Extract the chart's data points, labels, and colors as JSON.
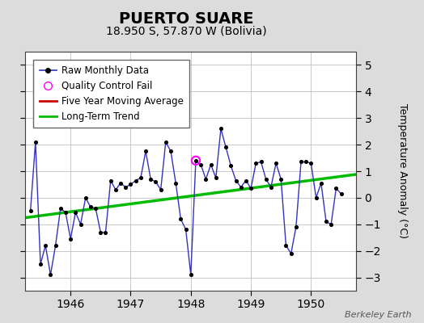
{
  "title": "PUERTO SUARE",
  "subtitle": "18.950 S, 57.870 W (Bolivia)",
  "ylabel": "Temperature Anomaly (°C)",
  "watermark": "Berkeley Earth",
  "xlim": [
    1945.25,
    1950.75
  ],
  "ylim": [
    -3.5,
    5.5
  ],
  "yticks": [
    -3,
    -2,
    -1,
    0,
    1,
    2,
    3,
    4,
    5
  ],
  "bg_color": "#dcdcdc",
  "plot_bg_color": "#ffffff",
  "raw_color": "#3333bb",
  "dot_color": "#000000",
  "trend_color": "#00bb00",
  "mavg_color": "#cc0000",
  "qc_color": "#ff00ff",
  "raw_monthly": [
    [
      1945.333,
      -0.5
    ],
    [
      1945.417,
      2.1
    ],
    [
      1945.5,
      -2.5
    ],
    [
      1945.583,
      -1.8
    ],
    [
      1945.667,
      -2.9
    ],
    [
      1945.75,
      -1.8
    ],
    [
      1945.833,
      -0.4
    ],
    [
      1945.917,
      -0.55
    ],
    [
      1946.0,
      -1.55
    ],
    [
      1946.083,
      -0.55
    ],
    [
      1946.167,
      -1.0
    ],
    [
      1946.25,
      0.0
    ],
    [
      1946.333,
      -0.35
    ],
    [
      1946.417,
      -0.4
    ],
    [
      1946.5,
      -1.3
    ],
    [
      1946.583,
      -1.3
    ],
    [
      1946.667,
      0.65
    ],
    [
      1946.75,
      0.3
    ],
    [
      1946.833,
      0.55
    ],
    [
      1946.917,
      0.4
    ],
    [
      1947.0,
      0.5
    ],
    [
      1947.083,
      0.65
    ],
    [
      1947.167,
      0.75
    ],
    [
      1947.25,
      1.75
    ],
    [
      1947.333,
      0.7
    ],
    [
      1947.417,
      0.6
    ],
    [
      1947.5,
      0.3
    ],
    [
      1947.583,
      2.1
    ],
    [
      1947.667,
      1.75
    ],
    [
      1947.75,
      0.55
    ],
    [
      1947.833,
      -0.8
    ],
    [
      1947.917,
      -1.2
    ],
    [
      1948.0,
      -2.9
    ],
    [
      1948.083,
      1.4
    ],
    [
      1948.167,
      1.25
    ],
    [
      1948.25,
      0.7
    ],
    [
      1948.333,
      1.25
    ],
    [
      1948.417,
      0.75
    ],
    [
      1948.5,
      2.6
    ],
    [
      1948.583,
      1.9
    ],
    [
      1948.667,
      1.2
    ],
    [
      1948.75,
      0.65
    ],
    [
      1948.833,
      0.4
    ],
    [
      1948.917,
      0.65
    ],
    [
      1949.0,
      0.35
    ],
    [
      1949.083,
      1.3
    ],
    [
      1949.167,
      1.35
    ],
    [
      1949.25,
      0.7
    ],
    [
      1949.333,
      0.4
    ],
    [
      1949.417,
      1.3
    ],
    [
      1949.5,
      0.7
    ],
    [
      1949.583,
      -1.8
    ],
    [
      1949.667,
      -2.1
    ],
    [
      1949.75,
      -1.1
    ],
    [
      1949.833,
      1.35
    ],
    [
      1949.917,
      1.35
    ],
    [
      1950.0,
      1.3
    ],
    [
      1950.083,
      0.0
    ],
    [
      1950.167,
      0.55
    ],
    [
      1950.25,
      -0.9
    ],
    [
      1950.333,
      -1.0
    ],
    [
      1950.417,
      0.35
    ],
    [
      1950.5,
      0.15
    ]
  ],
  "qc_fail": [
    [
      1948.083,
      1.4
    ]
  ],
  "trend_line": [
    [
      1945.25,
      -0.75
    ],
    [
      1950.75,
      0.88
    ]
  ],
  "xtick_positions": [
    1946,
    1947,
    1948,
    1949,
    1950
  ],
  "title_fontsize": 14,
  "subtitle_fontsize": 10,
  "tick_fontsize": 10,
  "legend_fontsize": 8.5,
  "ylabel_fontsize": 9
}
